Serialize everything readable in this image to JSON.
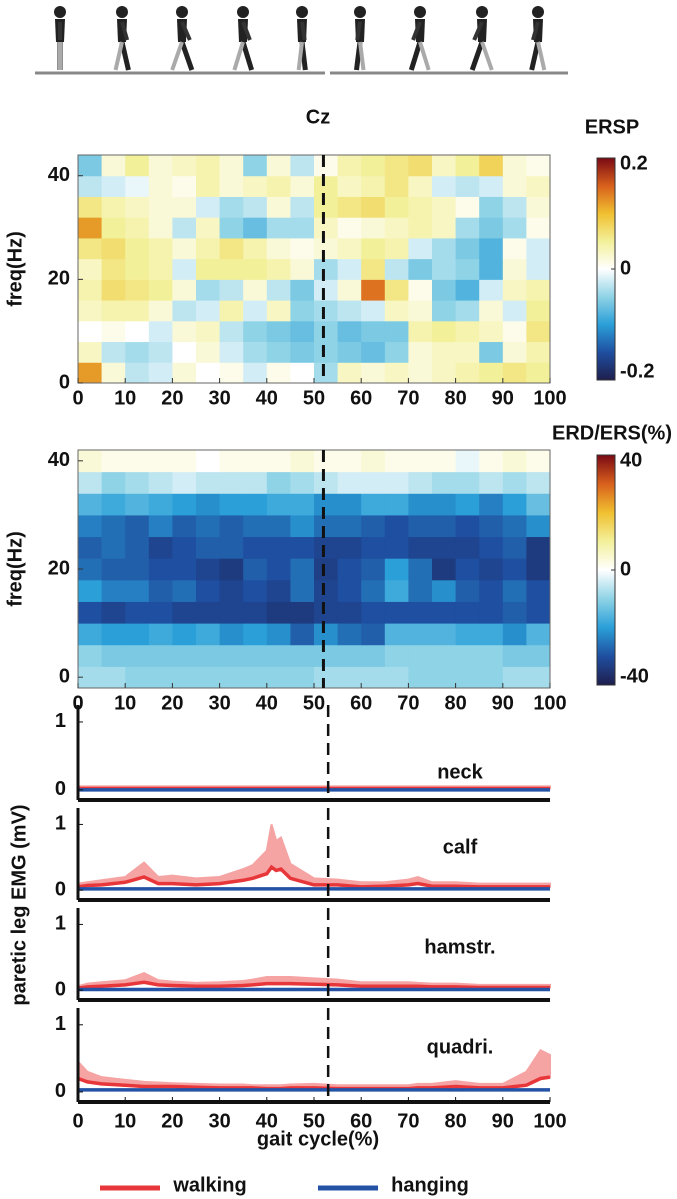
{
  "chart_data": [
    {
      "type": "heatmap",
      "title": "Cz",
      "ylabel": "freq(Hz)",
      "xlim": [
        0,
        100
      ],
      "xticks": [
        0,
        10,
        20,
        30,
        40,
        50,
        60,
        70,
        80,
        90,
        100
      ],
      "ylim": [
        0,
        44
      ],
      "yticks": [
        0,
        20,
        40
      ],
      "vline": 52,
      "colormap": [
        "#1f1e4e",
        "#1f4fa0",
        "#2a9fd8",
        "#8fd3e6",
        "#ffffff",
        "#f3f09a",
        "#f0c030",
        "#d8601c",
        "#7a0a14"
      ],
      "colorbar": {
        "label": "ERSP",
        "lim": [
          -0.2,
          0.2
        ],
        "ticks": [
          0.2,
          0,
          -0.2
        ]
      },
      "z": [
        [
          0.12,
          0.02,
          -0.03,
          -0.02,
          0.02,
          0,
          0.01,
          -0.02,
          0.01,
          0,
          -0.04,
          0.03,
          0.02,
          0.03,
          0.02,
          0.03,
          0.04,
          0.05,
          0.06,
          0.05
        ],
        [
          0.03,
          -0.03,
          -0.04,
          -0.03,
          0,
          0.02,
          -0.02,
          -0.04,
          -0.05,
          -0.06,
          -0.05,
          -0.06,
          -0.07,
          -0.05,
          0.02,
          0.03,
          0.03,
          -0.06,
          0.02,
          0.04
        ],
        [
          0,
          0.01,
          0,
          -0.02,
          0.02,
          0.03,
          -0.03,
          -0.05,
          -0.06,
          -0.07,
          -0.05,
          -0.07,
          -0.06,
          -0.06,
          0.04,
          0.05,
          0.04,
          0.03,
          0.01,
          0.06
        ],
        [
          0.03,
          0.04,
          0.04,
          0.02,
          -0.03,
          -0.02,
          0.04,
          -0.02,
          0.03,
          -0.05,
          -0.04,
          -0.03,
          -0.02,
          0.03,
          0.02,
          -0.05,
          -0.04,
          0.02,
          -0.02,
          0.05
        ],
        [
          0.04,
          0.07,
          0.06,
          0.05,
          0.02,
          -0.04,
          -0.03,
          0.02,
          -0.03,
          -0.06,
          -0.02,
          0.02,
          0.14,
          0.06,
          0.01,
          -0.06,
          -0.08,
          -0.02,
          0.03,
          0.04
        ],
        [
          0.03,
          0.06,
          0.05,
          0.04,
          -0.02,
          0.05,
          0.05,
          0.05,
          0.04,
          0.02,
          -0.04,
          -0.02,
          0.06,
          -0.03,
          -0.06,
          -0.04,
          -0.05,
          -0.08,
          0.02,
          -0.02
        ],
        [
          0.06,
          0.07,
          0.05,
          0.04,
          0.02,
          0.04,
          0.06,
          0.04,
          0.02,
          0.01,
          0.02,
          0.03,
          0.05,
          0.04,
          -0.02,
          -0.04,
          -0.06,
          -0.08,
          0.01,
          -0.02
        ],
        [
          0.12,
          0.05,
          0.04,
          0.02,
          -0.03,
          0.03,
          -0.05,
          -0.07,
          -0.04,
          -0.04,
          0.03,
          0.01,
          0.02,
          0.03,
          0.04,
          0.03,
          -0.04,
          -0.06,
          -0.04,
          0.01
        ],
        [
          0.06,
          0.04,
          0.03,
          0.02,
          0.02,
          -0.02,
          -0.04,
          -0.03,
          0.02,
          -0.03,
          0.05,
          0.06,
          0.07,
          0.05,
          0.04,
          0.03,
          0.01,
          -0.05,
          -0.03,
          0.02
        ],
        [
          -0.03,
          -0.02,
          -0.01,
          0.02,
          0.01,
          0.04,
          0.02,
          0.03,
          0.04,
          0.02,
          0.05,
          0.03,
          0.04,
          0.06,
          0.03,
          -0.02,
          -0.03,
          -0.02,
          0.02,
          0.03
        ],
        [
          -0.06,
          0.02,
          0.05,
          0.02,
          0.03,
          0.04,
          0.02,
          -0.05,
          0.02,
          -0.03,
          0.01,
          0.04,
          0.05,
          0.06,
          0.07,
          0.03,
          0.05,
          0.08,
          0.02,
          0.01
        ]
      ]
    },
    {
      "type": "heatmap",
      "ylabel": "freq(Hz)",
      "xlim": [
        0,
        100
      ],
      "xticks": [
        0,
        10,
        20,
        30,
        40,
        50,
        60,
        70,
        80,
        90,
        100
      ],
      "ylim": [
        -2,
        42
      ],
      "yticks": [
        0,
        20,
        40
      ],
      "vline": 52,
      "colormap": [
        "#1f1e4e",
        "#1f4fa0",
        "#2a9fd8",
        "#8fd3e6",
        "#ffffff",
        "#f3f09a",
        "#f0c030",
        "#d8601c",
        "#7a0a14"
      ],
      "colorbar": {
        "label": "ERD/ERS(%)",
        "lim": [
          -40,
          40
        ],
        "ticks": [
          40,
          0,
          -40
        ]
      },
      "z": [
        [
          -8,
          -8,
          -10,
          -10,
          -10,
          -10,
          -10,
          -10,
          -10,
          -10,
          -8,
          -8,
          -8,
          -8,
          -10,
          -10,
          -10,
          -10,
          -8,
          -8
        ],
        [
          -10,
          -12,
          -12,
          -12,
          -12,
          -12,
          -12,
          -12,
          -12,
          -12,
          -12,
          -12,
          -12,
          -10,
          -10,
          -10,
          -10,
          -10,
          -12,
          -12
        ],
        [
          -18,
          -20,
          -20,
          -18,
          -20,
          -18,
          -22,
          -20,
          -22,
          -28,
          -22,
          -26,
          -28,
          -16,
          -16,
          -16,
          -18,
          -18,
          -22,
          -16
        ],
        [
          -30,
          -32,
          -30,
          -30,
          -32,
          -32,
          -32,
          -32,
          -34,
          -34,
          -32,
          -32,
          -30,
          -30,
          -30,
          -30,
          -30,
          -30,
          -28,
          -30
        ],
        [
          -20,
          -24,
          -24,
          -28,
          -26,
          -30,
          -32,
          -30,
          -32,
          -26,
          -32,
          -30,
          -26,
          -18,
          -26,
          -22,
          -28,
          -30,
          -26,
          -30
        ],
        [
          -26,
          -28,
          -28,
          -30,
          -30,
          -32,
          -34,
          -28,
          -30,
          -26,
          -33,
          -30,
          -28,
          -20,
          -26,
          -34,
          -30,
          -32,
          -30,
          -34
        ],
        [
          -28,
          -26,
          -28,
          -32,
          -30,
          -28,
          -28,
          -30,
          -30,
          -30,
          -32,
          -32,
          -30,
          -30,
          -32,
          -32,
          -32,
          -30,
          -28,
          -34
        ],
        [
          -24,
          -26,
          -28,
          -24,
          -28,
          -26,
          -28,
          -26,
          -26,
          -22,
          -26,
          -26,
          -28,
          -30,
          -28,
          -28,
          -30,
          -28,
          -26,
          -22
        ],
        [
          -16,
          -18,
          -16,
          -18,
          -20,
          -22,
          -20,
          -20,
          -18,
          -18,
          -22,
          -22,
          -18,
          -18,
          -22,
          -22,
          -20,
          -24,
          -20,
          -14
        ],
        [
          -6,
          -10,
          -8,
          -6,
          -4,
          -6,
          -6,
          -6,
          -10,
          -8,
          -6,
          -4,
          -4,
          -4,
          -6,
          -8,
          -8,
          -6,
          -8,
          -6
        ],
        [
          4,
          2,
          2,
          2,
          2,
          0,
          2,
          2,
          2,
          4,
          2,
          2,
          4,
          2,
          2,
          2,
          -2,
          2,
          4,
          2
        ]
      ]
    },
    {
      "type": "line",
      "ylabel": "paretic leg EMG (mV)",
      "xlabel": "gait cycle(%)",
      "xlim": [
        0,
        100
      ],
      "xticks": [
        0,
        10,
        20,
        30,
        40,
        50,
        60,
        70,
        80,
        90,
        100
      ],
      "ylim": [
        -0.15,
        1.25
      ],
      "yticks": [
        0,
        1
      ],
      "vline": 53,
      "series": [
        {
          "name": "walking",
          "color": "#e8373a",
          "band_color": "#f5a3a3"
        },
        {
          "name": "hanging",
          "color": "#2453a6"
        }
      ],
      "x": [
        0,
        2,
        5,
        10,
        14,
        17,
        20,
        25,
        30,
        35,
        37,
        40,
        41,
        42,
        43,
        45,
        50,
        55,
        60,
        65,
        70,
        72,
        75,
        80,
        85,
        90,
        95,
        98,
        100
      ],
      "panels": [
        {
          "label": "neck",
          "series": [
            {
              "values": [
                0.02,
                0.02,
                0.02,
                0.02,
                0.02,
                0.02,
                0.02,
                0.02,
                0.02,
                0.02,
                0.02,
                0.02,
                0.02,
                0.02,
                0.02,
                0.02,
                0.02,
                0.02,
                0.02,
                0.02,
                0.02,
                0.02,
                0.02,
                0.02,
                0.02,
                0.02,
                0.02,
                0.02,
                0.02
              ],
              "upper": [
                0.05,
                0.05,
                0.05,
                0.05,
                0.05,
                0.05,
                0.05,
                0.05,
                0.05,
                0.05,
                0.05,
                0.05,
                0.05,
                0.05,
                0.05,
                0.05,
                0.05,
                0.05,
                0.05,
                0.05,
                0.05,
                0.05,
                0.05,
                0.05,
                0.05,
                0.05,
                0.05,
                0.05,
                0.05
              ]
            },
            {
              "values": [
                0,
                0,
                0,
                0,
                0,
                0,
                0,
                0,
                0,
                0,
                0,
                0,
                0,
                0,
                0,
                0,
                0,
                0,
                0,
                0,
                0,
                0,
                0,
                0,
                0,
                0,
                0,
                0,
                0
              ]
            }
          ]
        },
        {
          "label": "calf",
          "series": [
            {
              "values": [
                0.05,
                0.07,
                0.08,
                0.12,
                0.2,
                0.1,
                0.1,
                0.08,
                0.1,
                0.15,
                0.18,
                0.25,
                0.35,
                0.3,
                0.32,
                0.18,
                0.08,
                0.08,
                0.05,
                0.06,
                0.08,
                0.1,
                0.06,
                0.06,
                0.05,
                0.05,
                0.05,
                0.05,
                0.05
              ],
              "upper": [
                0.1,
                0.12,
                0.15,
                0.2,
                0.42,
                0.2,
                0.22,
                0.18,
                0.2,
                0.32,
                0.38,
                0.6,
                1.0,
                0.75,
                0.8,
                0.4,
                0.18,
                0.16,
                0.12,
                0.12,
                0.16,
                0.2,
                0.12,
                0.12,
                0.1,
                0.1,
                0.1,
                0.1,
                0.1
              ]
            },
            {
              "values": [
                0.02,
                0.02,
                0.02,
                0.02,
                0.02,
                0.02,
                0.02,
                0.02,
                0.02,
                0.02,
                0.02,
                0.02,
                0.02,
                0.02,
                0.02,
                0.02,
                0.02,
                0.02,
                0.02,
                0.02,
                0.02,
                0.02,
                0.02,
                0.02,
                0.02,
                0.02,
                0.02,
                0.02,
                0.02
              ]
            }
          ]
        },
        {
          "label": "hamstr.",
          "series": [
            {
              "values": [
                0.03,
                0.05,
                0.06,
                0.08,
                0.12,
                0.08,
                0.07,
                0.06,
                0.06,
                0.07,
                0.08,
                0.1,
                0.1,
                0.1,
                0.1,
                0.1,
                0.09,
                0.08,
                0.06,
                0.06,
                0.06,
                0.06,
                0.05,
                0.05,
                0.04,
                0.04,
                0.04,
                0.04,
                0.04
              ],
              "upper": [
                0.06,
                0.1,
                0.12,
                0.15,
                0.26,
                0.15,
                0.13,
                0.11,
                0.12,
                0.14,
                0.16,
                0.2,
                0.2,
                0.2,
                0.2,
                0.2,
                0.18,
                0.16,
                0.12,
                0.12,
                0.12,
                0.11,
                0.1,
                0.1,
                0.08,
                0.08,
                0.08,
                0.08,
                0.08
              ]
            },
            {
              "values": [
                0.01,
                0.01,
                0.01,
                0.01,
                0.01,
                0.01,
                0.01,
                0.01,
                0.01,
                0.01,
                0.01,
                0.01,
                0.01,
                0.01,
                0.01,
                0.01,
                0.01,
                0.01,
                0.01,
                0.01,
                0.01,
                0.01,
                0.01,
                0.01,
                0.01,
                0.01,
                0.01,
                0.01,
                0.01
              ]
            }
          ]
        },
        {
          "label": "quadri.",
          "series": [
            {
              "values": [
                0.2,
                0.15,
                0.12,
                0.1,
                0.08,
                0.08,
                0.08,
                0.07,
                0.06,
                0.06,
                0.06,
                0.05,
                0.05,
                0.05,
                0.05,
                0.06,
                0.06,
                0.05,
                0.05,
                0.05,
                0.05,
                0.06,
                0.06,
                0.08,
                0.06,
                0.06,
                0.1,
                0.2,
                0.22
              ],
              "upper": [
                0.45,
                0.3,
                0.22,
                0.18,
                0.15,
                0.14,
                0.13,
                0.12,
                0.11,
                0.11,
                0.1,
                0.1,
                0.1,
                0.1,
                0.1,
                0.11,
                0.12,
                0.1,
                0.1,
                0.1,
                0.1,
                0.12,
                0.12,
                0.16,
                0.12,
                0.12,
                0.3,
                0.62,
                0.55
              ]
            },
            {
              "values": [
                0.03,
                0.03,
                0.03,
                0.03,
                0.03,
                0.03,
                0.03,
                0.03,
                0.03,
                0.03,
                0.03,
                0.03,
                0.03,
                0.03,
                0.03,
                0.03,
                0.03,
                0.03,
                0.03,
                0.03,
                0.03,
                0.03,
                0.03,
                0.03,
                0.03,
                0.03,
                0.03,
                0.03,
                0.03
              ]
            }
          ]
        }
      ]
    }
  ]
}
